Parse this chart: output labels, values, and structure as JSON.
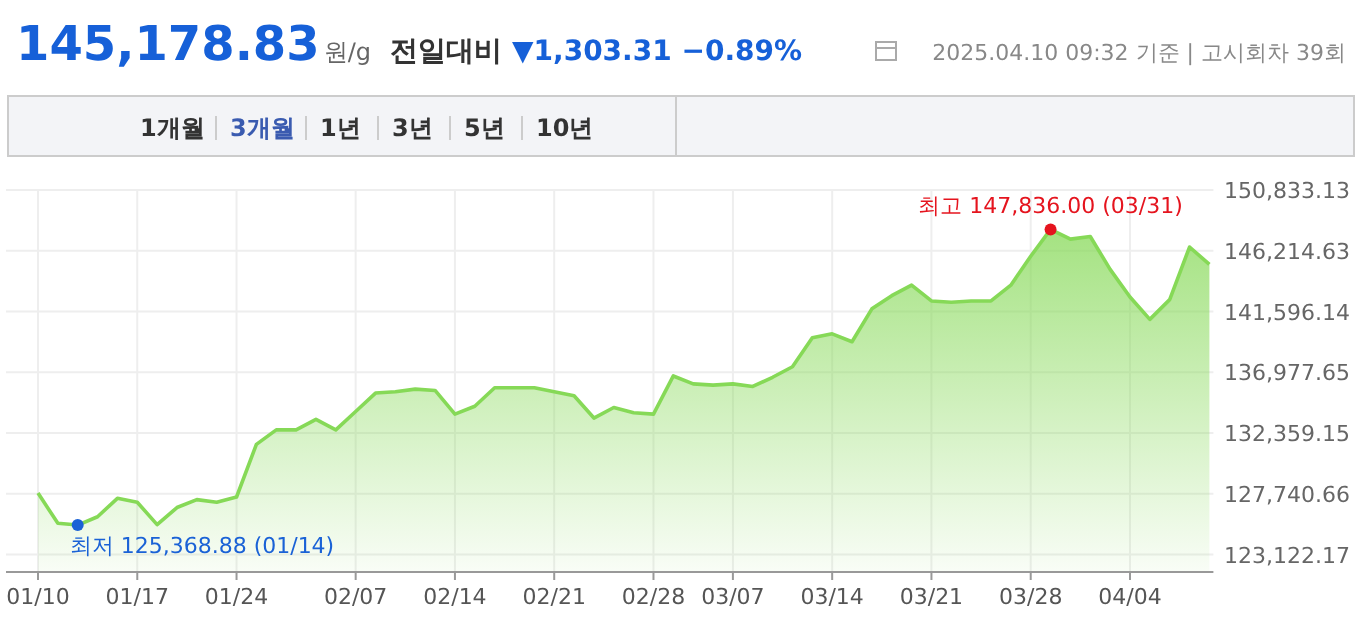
{
  "chart_data": {
    "type": "area",
    "title": "145,178.83원/g",
    "subtitle": "전일대비 ▼1,303.31 −0.89%",
    "annotations": [
      "2025.04.10 09:32 기준 | 고시회차 39회",
      "1개월",
      "3개월",
      "1년",
      "3년",
      "5년",
      "10년",
      "최저 125,368.88 (01/14)",
      "최고 147,836.00 (03/31)"
    ],
    "categories": [
      "01/10",
      null,
      null,
      null,
      null,
      "01/17",
      null,
      null,
      null,
      null,
      "01/24",
      null,
      null,
      null,
      null,
      null,
      "02/07",
      null,
      null,
      null,
      null,
      "02/14",
      null,
      null,
      null,
      null,
      "02/21",
      null,
      null,
      null,
      null,
      "02/28",
      null,
      null,
      null,
      "03/07",
      null,
      null,
      null,
      null,
      "03/14",
      null,
      null,
      null,
      null,
      "03/21",
      null,
      null,
      null,
      null,
      "03/28",
      null,
      null,
      null,
      null,
      "04/04",
      null,
      null,
      null,
      null
    ],
    "series": [
      {
        "color": "#86d957",
        "values": [
          127800,
          125500,
          125368.88,
          126000,
          127400,
          127100,
          125400,
          126700,
          127300,
          127100,
          127500,
          131500,
          132600,
          132600,
          133400,
          132600,
          134000,
          135400,
          135500,
          135700,
          135600,
          133800,
          134400,
          135800,
          135800,
          135800,
          135500,
          135200,
          133500,
          134300,
          133900,
          133800,
          136700,
          136100,
          136000,
          136100,
          135900,
          136600,
          137400,
          139600,
          139900,
          139300,
          141800,
          142800,
          143600,
          142400,
          142300,
          142400,
          142400,
          143600,
          145800,
          147836.0,
          147100,
          147300,
          144800,
          142700,
          141000,
          142500,
          146500,
          145178.83
        ]
      }
    ],
    "ylim": [
      121800,
      150833.13
    ],
    "yticks": [
      {
        "value": 123122.17,
        "label": "123,122.17"
      },
      {
        "value": 127740.66,
        "label": "127,740.66"
      },
      {
        "value": 132359.15,
        "label": "132,359.15"
      },
      {
        "value": 136977.65,
        "label": "136,977.65"
      },
      {
        "value": 141596.14,
        "label": "141,596.14"
      },
      {
        "value": 146214.63,
        "label": "146,214.63"
      },
      {
        "value": 150833.13,
        "label": "150,833.13"
      }
    ],
    "grid": true
  }
}
